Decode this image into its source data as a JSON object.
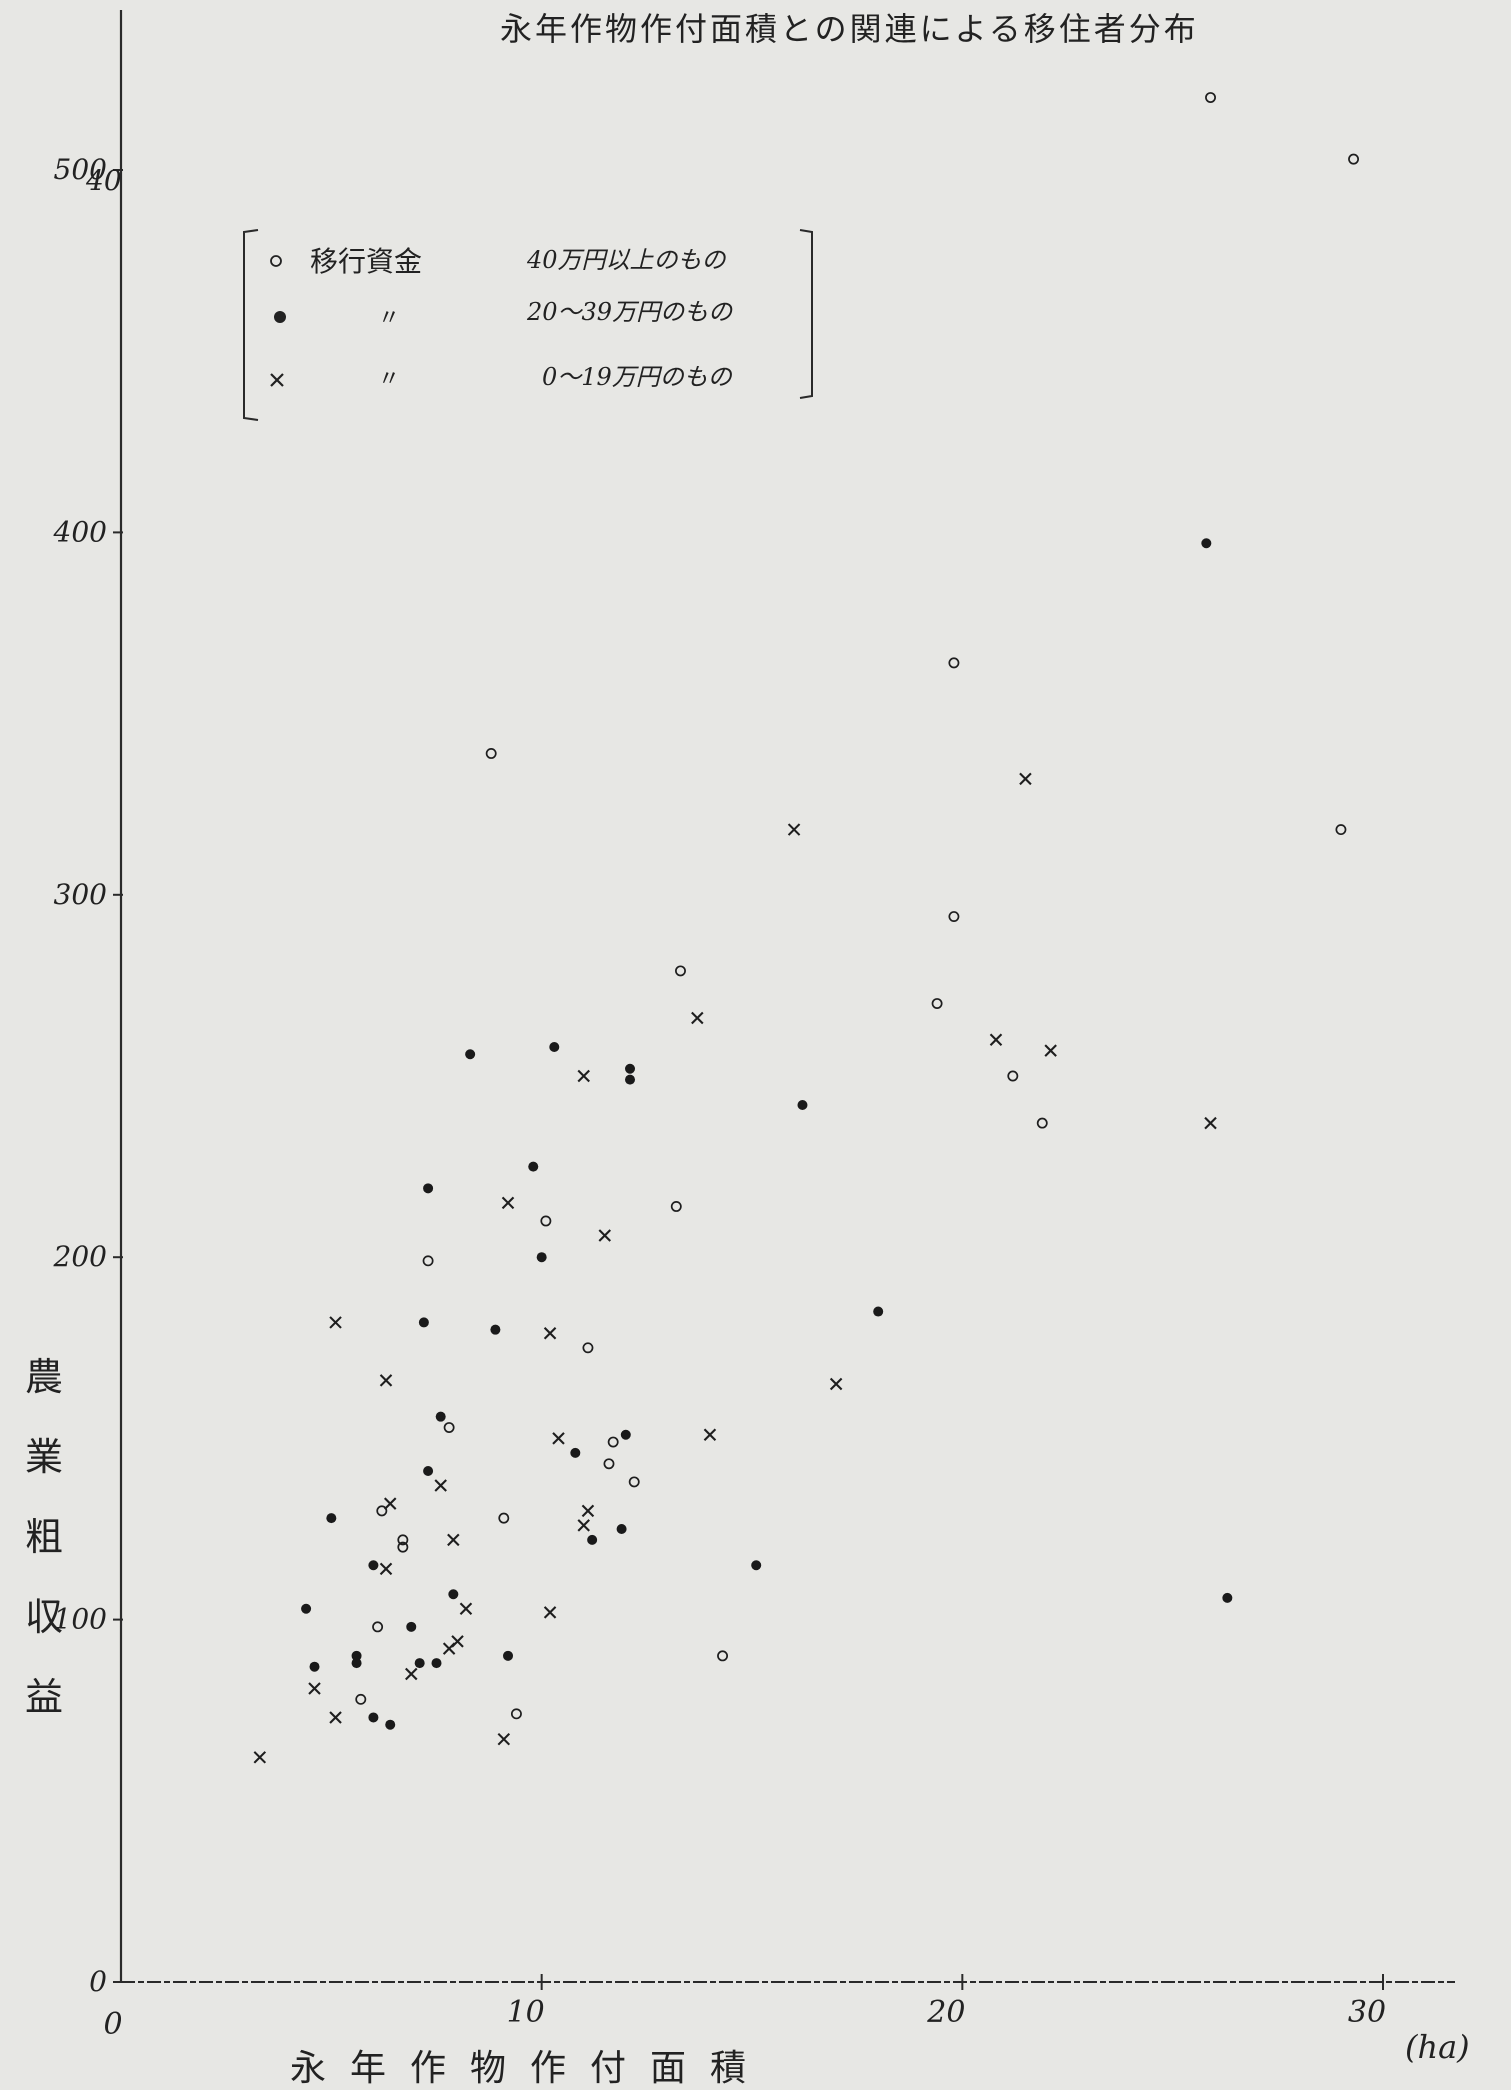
{
  "chart_data": {
    "type": "scatter",
    "title": "永年作物作付面積との関連による移住者分布",
    "xlabel": "永年作物作付面積",
    "x_unit": "(ha)",
    "ylabel": "農業粗収益",
    "xlim": [
      0,
      31
    ],
    "ylim": [
      0,
      500
    ],
    "x_ticks": [
      0,
      10,
      20,
      30
    ],
    "x_tick_labels": [
      "0",
      "10",
      "20",
      "30"
    ],
    "y_ticks": [
      0,
      100,
      200,
      300,
      400,
      500
    ],
    "y_tick_labels": [
      "0",
      "100",
      "200",
      "300",
      "400",
      "500"
    ],
    "y_top_overwrite": "40",
    "grid": false,
    "legend_position": "top-left",
    "series": [
      {
        "name": "40万円以上のもの",
        "legend_label": "移行資金",
        "legend_range": "40万円以上のもの",
        "marker": "open-circle",
        "points": [
          [
            25.9,
            520
          ],
          [
            29.3,
            503
          ],
          [
            8.8,
            339
          ],
          [
            19.8,
            364
          ],
          [
            29.0,
            318
          ],
          [
            19.8,
            294
          ],
          [
            13.3,
            279
          ],
          [
            19.4,
            270
          ],
          [
            21.2,
            250
          ],
          [
            21.9,
            237
          ],
          [
            10.1,
            210
          ],
          [
            13.2,
            214
          ],
          [
            7.3,
            199
          ],
          [
            11.1,
            175
          ],
          [
            7.8,
            153
          ],
          [
            11.7,
            149
          ],
          [
            11.6,
            143
          ],
          [
            12.2,
            138
          ],
          [
            9.1,
            128
          ],
          [
            6.7,
            122
          ],
          [
            6.7,
            120
          ],
          [
            6.2,
            130
          ],
          [
            6.1,
            98
          ],
          [
            14.3,
            90
          ],
          [
            5.7,
            78
          ],
          [
            9.4,
            74
          ]
        ]
      },
      {
        "name": "20～39万円のもの",
        "legend_label": "〃",
        "legend_range": "20～39万円のもの",
        "marker": "filled-circle",
        "points": [
          [
            25.8,
            397
          ],
          [
            8.3,
            256
          ],
          [
            10.3,
            258
          ],
          [
            12.1,
            252
          ],
          [
            12.1,
            249
          ],
          [
            16.2,
            242
          ],
          [
            9.8,
            225
          ],
          [
            7.3,
            219
          ],
          [
            10.0,
            200
          ],
          [
            18.0,
            185
          ],
          [
            7.2,
            182
          ],
          [
            8.9,
            180
          ],
          [
            7.6,
            156
          ],
          [
            12.0,
            151
          ],
          [
            10.8,
            146
          ],
          [
            7.3,
            141
          ],
          [
            5.0,
            128
          ],
          [
            11.2,
            122
          ],
          [
            11.9,
            125
          ],
          [
            6.0,
            115
          ],
          [
            15.1,
            115
          ],
          [
            26.3,
            106
          ],
          [
            7.9,
            107
          ],
          [
            4.4,
            103
          ],
          [
            6.9,
            98
          ],
          [
            4.6,
            87
          ],
          [
            5.6,
            90
          ],
          [
            5.6,
            88
          ],
          [
            7.1,
            88
          ],
          [
            7.5,
            88
          ],
          [
            9.2,
            90
          ],
          [
            6.4,
            71
          ],
          [
            6.0,
            73
          ]
        ]
      },
      {
        "name": "0～19万円のもの",
        "legend_label": "〃",
        "legend_range": "0～19万円のもの",
        "marker": "cross",
        "points": [
          [
            21.5,
            332
          ],
          [
            16.0,
            318
          ],
          [
            13.7,
            266
          ],
          [
            20.8,
            260
          ],
          [
            22.1,
            257
          ],
          [
            25.9,
            237
          ],
          [
            11.0,
            250
          ],
          [
            9.2,
            215
          ],
          [
            11.5,
            206
          ],
          [
            5.1,
            182
          ],
          [
            10.2,
            179
          ],
          [
            6.3,
            166
          ],
          [
            17.0,
            165
          ],
          [
            14.0,
            151
          ],
          [
            10.4,
            150
          ],
          [
            7.6,
            137
          ],
          [
            6.4,
            132
          ],
          [
            11.0,
            126
          ],
          [
            11.1,
            130
          ],
          [
            7.9,
            122
          ],
          [
            6.3,
            114
          ],
          [
            8.2,
            103
          ],
          [
            10.2,
            102
          ],
          [
            8.0,
            94
          ],
          [
            7.8,
            92
          ],
          [
            6.9,
            85
          ],
          [
            4.6,
            81
          ],
          [
            5.1,
            73
          ],
          [
            9.1,
            67
          ],
          [
            3.3,
            62
          ]
        ]
      }
    ]
  }
}
